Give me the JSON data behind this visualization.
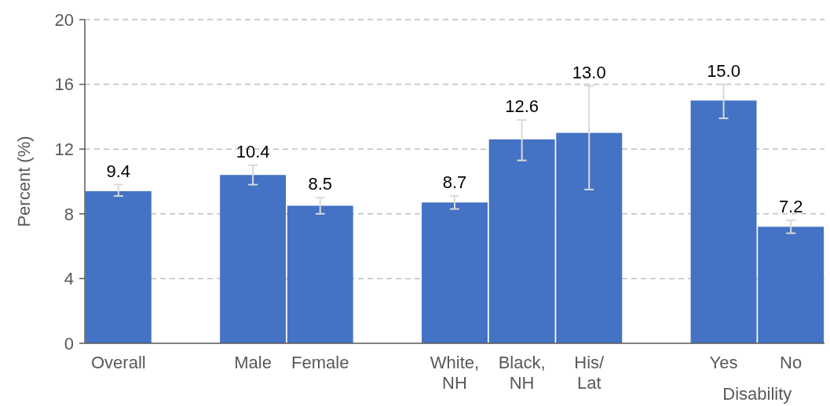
{
  "chart_data": {
    "type": "bar",
    "ylabel": "Percent (%)",
    "categories": [
      "Overall",
      null,
      "Male",
      "Female",
      null,
      "White,\nNH",
      "Black,\nNH",
      "His/\nLat",
      null,
      "Yes",
      "No"
    ],
    "values": [
      9.4,
      null,
      10.4,
      8.5,
      null,
      8.7,
      12.6,
      13.0,
      null,
      15.0,
      7.2
    ],
    "errors": [
      [
        9.1,
        9.8
      ],
      null,
      [
        9.8,
        11.0
      ],
      [
        8.0,
        9.0
      ],
      null,
      [
        8.3,
        9.1
      ],
      [
        11.3,
        13.8
      ],
      [
        9.5,
        15.9
      ],
      null,
      [
        13.9,
        16.0
      ],
      [
        6.8,
        7.6
      ]
    ],
    "color": "#4472c4",
    "value_labels": [
      "9.4",
      null,
      "10.4",
      "8.5",
      null,
      "8.7",
      "12.6",
      "13.0",
      null,
      "15.0",
      "7.2"
    ],
    "ylim": [
      0,
      20
    ],
    "yticks": [
      0,
      4,
      8,
      12,
      16,
      20
    ],
    "grid": "y",
    "annotations": [
      "Disability"
    ]
  }
}
